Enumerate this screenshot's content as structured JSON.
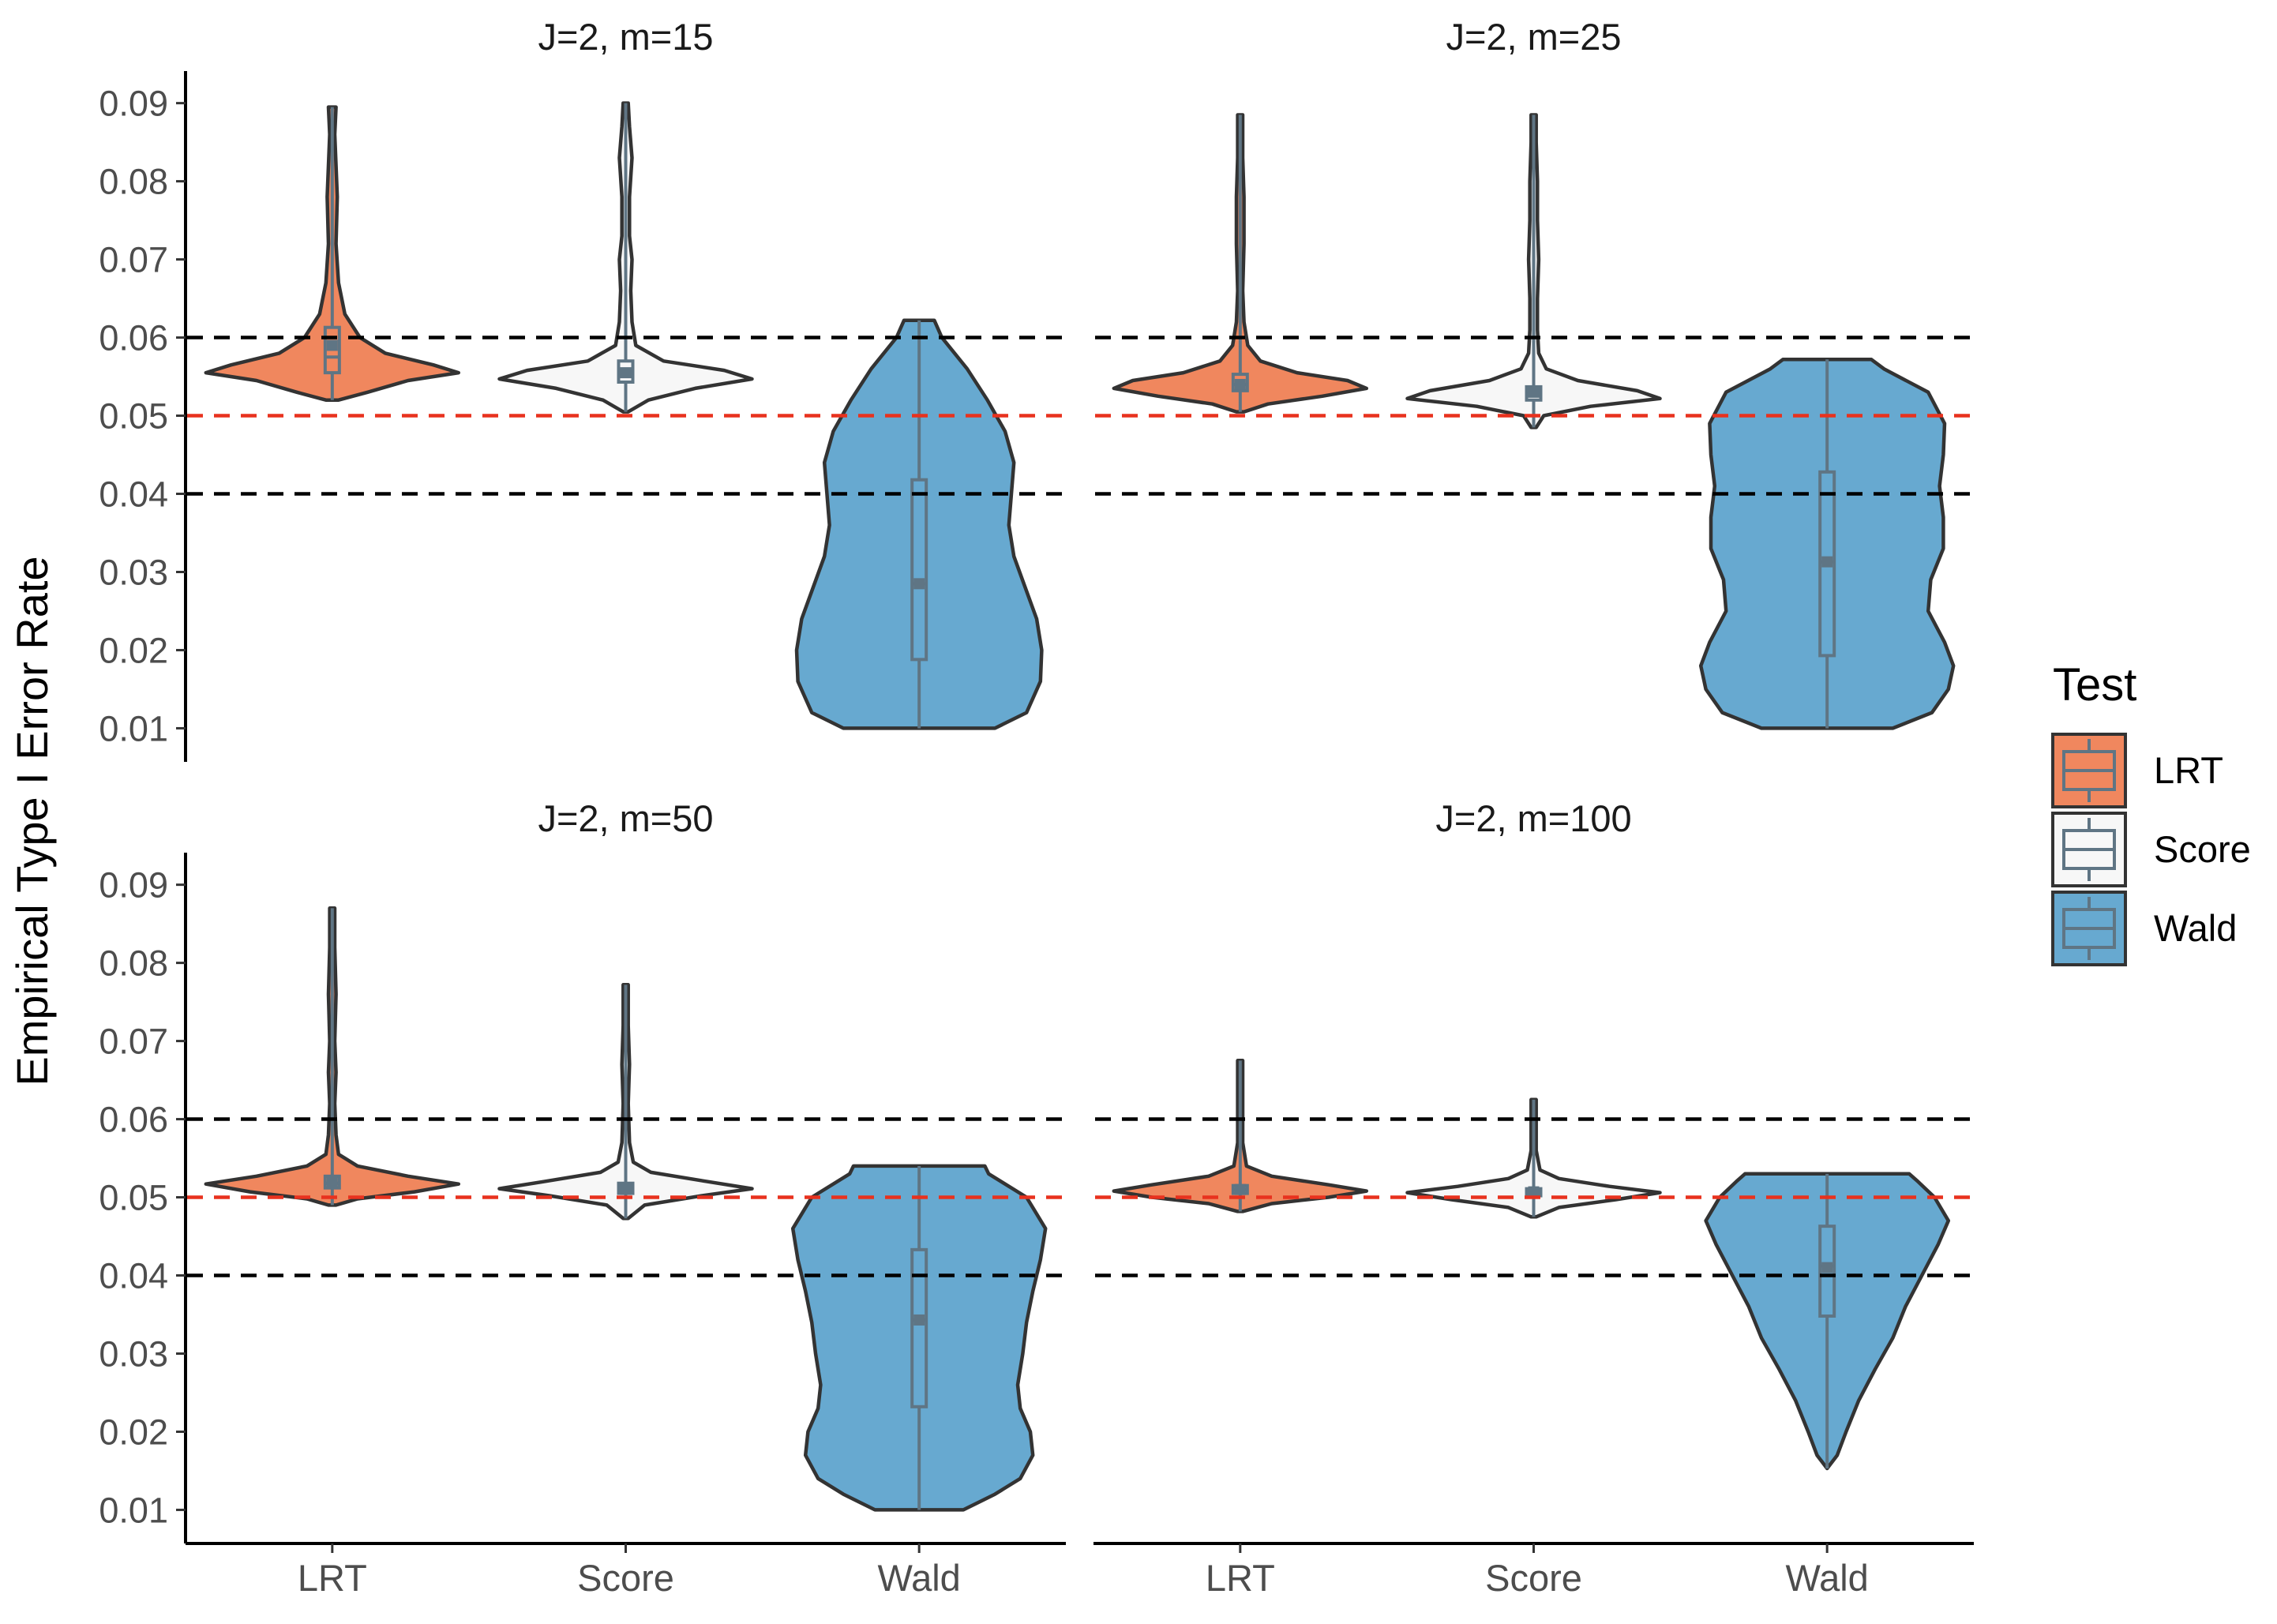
{
  "chart_data": {
    "type": "violin",
    "ylabel": "Empirical Type I Error Rate",
    "ylim": [
      0.0057,
      0.0936
    ],
    "yticks": [
      0.01,
      0.02,
      0.03,
      0.04,
      0.05,
      0.06,
      0.07,
      0.08,
      0.09
    ],
    "ytick_labels": [
      "0.01",
      "0.02",
      "0.03",
      "0.04",
      "0.05",
      "0.06",
      "0.07",
      "0.08",
      "0.09"
    ],
    "categories": [
      "LRT",
      "Score",
      "Wald"
    ],
    "reference_lines": [
      {
        "y": 0.06,
        "color": "#000000",
        "style": "dashed"
      },
      {
        "y": 0.05,
        "color": "#e8321e",
        "style": "dashed"
      },
      {
        "y": 0.04,
        "color": "#000000",
        "style": "dashed"
      }
    ],
    "legend": {
      "title": "Test",
      "position": "right",
      "items": [
        {
          "label": "LRT",
          "color": "#f0875e"
        },
        {
          "label": "Score",
          "color": "#f7f7f7"
        },
        {
          "label": "Wald",
          "color": "#67a9d0"
        }
      ]
    },
    "panels": [
      {
        "title": "J=2, m=15",
        "groups": [
          {
            "name": "LRT",
            "min": 0.052,
            "max": 0.0895,
            "q1": 0.0555,
            "median": 0.0575,
            "q3": 0.0613,
            "mean": 0.059,
            "profile": [
              [
                0.052,
                0.05
              ],
              [
                0.053,
                0.28
              ],
              [
                0.0545,
                0.6
              ],
              [
                0.0555,
                1.0
              ],
              [
                0.0565,
                0.8
              ],
              [
                0.058,
                0.42
              ],
              [
                0.06,
                0.22
              ],
              [
                0.063,
                0.1
              ],
              [
                0.067,
                0.05
              ],
              [
                0.072,
                0.03
              ],
              [
                0.078,
                0.04
              ],
              [
                0.082,
                0.03
              ],
              [
                0.086,
                0.02
              ],
              [
                0.0895,
                0.03
              ]
            ]
          },
          {
            "name": "Score",
            "min": 0.0505,
            "max": 0.09,
            "q1": 0.0543,
            "median": 0.0555,
            "q3": 0.057,
            "mean": 0.0555,
            "profile": [
              [
                0.0505,
                0.02
              ],
              [
                0.052,
                0.18
              ],
              [
                0.0535,
                0.55
              ],
              [
                0.0547,
                1.0
              ],
              [
                0.0558,
                0.78
              ],
              [
                0.057,
                0.3
              ],
              [
                0.059,
                0.08
              ],
              [
                0.062,
                0.05
              ],
              [
                0.066,
                0.04
              ],
              [
                0.07,
                0.05
              ],
              [
                0.073,
                0.03
              ],
              [
                0.078,
                0.03
              ],
              [
                0.083,
                0.05
              ],
              [
                0.087,
                0.03
              ],
              [
                0.09,
                0.02
              ]
            ]
          },
          {
            "name": "Wald",
            "min": 0.01,
            "max": 0.0622,
            "q1": 0.0188,
            "median": 0.0285,
            "q3": 0.0418,
            "mean": 0.0285,
            "profile": [
              [
                0.01,
                0.6
              ],
              [
                0.012,
                0.85
              ],
              [
                0.016,
                0.96
              ],
              [
                0.02,
                0.97
              ],
              [
                0.024,
                0.93
              ],
              [
                0.028,
                0.84
              ],
              [
                0.032,
                0.75
              ],
              [
                0.036,
                0.71
              ],
              [
                0.04,
                0.73
              ],
              [
                0.044,
                0.75
              ],
              [
                0.048,
                0.68
              ],
              [
                0.052,
                0.54
              ],
              [
                0.056,
                0.38
              ],
              [
                0.06,
                0.18
              ],
              [
                0.0622,
                0.12
              ]
            ]
          }
        ]
      },
      {
        "title": "J=2, m=25",
        "groups": [
          {
            "name": "LRT",
            "min": 0.0505,
            "max": 0.0885,
            "q1": 0.0532,
            "median": 0.054,
            "q3": 0.0553,
            "mean": 0.054,
            "profile": [
              [
                0.0505,
                0.03
              ],
              [
                0.0515,
                0.22
              ],
              [
                0.0525,
                0.65
              ],
              [
                0.0535,
                1.0
              ],
              [
                0.0545,
                0.85
              ],
              [
                0.0555,
                0.45
              ],
              [
                0.057,
                0.16
              ],
              [
                0.059,
                0.06
              ],
              [
                0.062,
                0.03
              ],
              [
                0.066,
                0.02
              ],
              [
                0.072,
                0.03
              ],
              [
                0.078,
                0.03
              ],
              [
                0.083,
                0.02
              ],
              [
                0.0885,
                0.02
              ]
            ]
          },
          {
            "name": "Score",
            "min": 0.0485,
            "max": 0.0885,
            "q1": 0.052,
            "median": 0.0527,
            "q3": 0.0537,
            "mean": 0.053,
            "profile": [
              [
                0.0485,
                0.02
              ],
              [
                0.05,
                0.08
              ],
              [
                0.0512,
                0.45
              ],
              [
                0.0522,
                1.0
              ],
              [
                0.0532,
                0.82
              ],
              [
                0.0545,
                0.35
              ],
              [
                0.056,
                0.1
              ],
              [
                0.058,
                0.04
              ],
              [
                0.061,
                0.03
              ],
              [
                0.065,
                0.03
              ],
              [
                0.07,
                0.04
              ],
              [
                0.075,
                0.03
              ],
              [
                0.08,
                0.03
              ],
              [
                0.085,
                0.02
              ],
              [
                0.0885,
                0.02
              ]
            ]
          },
          {
            "name": "Wald",
            "min": 0.01,
            "max": 0.0572,
            "q1": 0.0193,
            "median": 0.0313,
            "q3": 0.0428,
            "mean": 0.0313,
            "profile": [
              [
                0.01,
                0.52
              ],
              [
                0.012,
                0.83
              ],
              [
                0.015,
                0.96
              ],
              [
                0.018,
                1.0
              ],
              [
                0.021,
                0.93
              ],
              [
                0.025,
                0.8
              ],
              [
                0.029,
                0.82
              ],
              [
                0.033,
                0.92
              ],
              [
                0.037,
                0.92
              ],
              [
                0.041,
                0.89
              ],
              [
                0.045,
                0.92
              ],
              [
                0.049,
                0.93
              ],
              [
                0.053,
                0.8
              ],
              [
                0.056,
                0.45
              ],
              [
                0.0572,
                0.35
              ]
            ]
          }
        ]
      },
      {
        "title": "J=2, m=50",
        "groups": [
          {
            "name": "LRT",
            "min": 0.049,
            "max": 0.087,
            "q1": 0.0512,
            "median": 0.0518,
            "q3": 0.0527,
            "mean": 0.052,
            "profile": [
              [
                0.049,
                0.03
              ],
              [
                0.0498,
                0.2
              ],
              [
                0.0507,
                0.65
              ],
              [
                0.0517,
                1.0
              ],
              [
                0.0527,
                0.6
              ],
              [
                0.054,
                0.2
              ],
              [
                0.0555,
                0.05
              ],
              [
                0.058,
                0.03
              ],
              [
                0.062,
                0.02
              ],
              [
                0.066,
                0.03
              ],
              [
                0.07,
                0.02
              ],
              [
                0.076,
                0.03
              ],
              [
                0.082,
                0.02
              ],
              [
                0.087,
                0.02
              ]
            ]
          },
          {
            "name": "Score",
            "min": 0.0473,
            "max": 0.0772,
            "q1": 0.0505,
            "median": 0.051,
            "q3": 0.0518,
            "mean": 0.051,
            "profile": [
              [
                0.0473,
                0.02
              ],
              [
                0.049,
                0.15
              ],
              [
                0.0502,
                0.6
              ],
              [
                0.0511,
                1.0
              ],
              [
                0.052,
                0.65
              ],
              [
                0.0532,
                0.2
              ],
              [
                0.0545,
                0.06
              ],
              [
                0.057,
                0.03
              ],
              [
                0.062,
                0.02
              ],
              [
                0.067,
                0.03
              ],
              [
                0.072,
                0.02
              ],
              [
                0.0772,
                0.02
              ]
            ]
          },
          {
            "name": "Wald",
            "min": 0.01,
            "max": 0.054,
            "q1": 0.0232,
            "median": 0.0343,
            "q3": 0.0433,
            "mean": 0.0343,
            "profile": [
              [
                0.01,
                0.35
              ],
              [
                0.012,
                0.6
              ],
              [
                0.014,
                0.8
              ],
              [
                0.017,
                0.9
              ],
              [
                0.02,
                0.88
              ],
              [
                0.023,
                0.8
              ],
              [
                0.026,
                0.78
              ],
              [
                0.03,
                0.82
              ],
              [
                0.034,
                0.85
              ],
              [
                0.038,
                0.9
              ],
              [
                0.042,
                0.96
              ],
              [
                0.046,
                1.0
              ],
              [
                0.05,
                0.85
              ],
              [
                0.053,
                0.55
              ],
              [
                0.054,
                0.52
              ]
            ]
          }
        ]
      },
      {
        "title": "J=2, m=100",
        "groups": [
          {
            "name": "LRT",
            "min": 0.0482,
            "max": 0.0675,
            "q1": 0.0505,
            "median": 0.051,
            "q3": 0.0515,
            "mean": 0.051,
            "profile": [
              [
                0.0482,
                0.02
              ],
              [
                0.0492,
                0.25
              ],
              [
                0.05,
                0.7
              ],
              [
                0.0508,
                1.0
              ],
              [
                0.0516,
                0.7
              ],
              [
                0.0527,
                0.25
              ],
              [
                0.054,
                0.05
              ],
              [
                0.057,
                0.02
              ],
              [
                0.06,
                0.02
              ],
              [
                0.064,
                0.02
              ],
              [
                0.0675,
                0.02
              ]
            ]
          },
          {
            "name": "Score",
            "min": 0.0475,
            "max": 0.0625,
            "q1": 0.0502,
            "median": 0.0507,
            "q3": 0.0511,
            "mean": 0.0507,
            "profile": [
              [
                0.0475,
                0.02
              ],
              [
                0.0487,
                0.2
              ],
              [
                0.0497,
                0.65
              ],
              [
                0.0506,
                1.0
              ],
              [
                0.0514,
                0.6
              ],
              [
                0.0524,
                0.2
              ],
              [
                0.0535,
                0.05
              ],
              [
                0.056,
                0.02
              ],
              [
                0.059,
                0.02
              ],
              [
                0.0625,
                0.02
              ]
            ]
          },
          {
            "name": "Wald",
            "min": 0.0153,
            "max": 0.053,
            "q1": 0.0348,
            "median": 0.0412,
            "q3": 0.0463,
            "mean": 0.041,
            "profile": [
              [
                0.0153,
                0.0
              ],
              [
                0.017,
                0.08
              ],
              [
                0.02,
                0.15
              ],
              [
                0.024,
                0.25
              ],
              [
                0.028,
                0.38
              ],
              [
                0.032,
                0.52
              ],
              [
                0.036,
                0.62
              ],
              [
                0.04,
                0.75
              ],
              [
                0.044,
                0.88
              ],
              [
                0.047,
                0.96
              ],
              [
                0.05,
                0.85
              ],
              [
                0.052,
                0.72
              ],
              [
                0.053,
                0.65
              ]
            ]
          }
        ]
      }
    ]
  }
}
